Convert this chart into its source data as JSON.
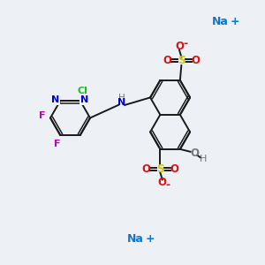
{
  "background_color": "#edf0f5",
  "figure_size": [
    3.0,
    3.0
  ],
  "dpi": 100,
  "colors": {
    "bond": "#1a1a1a",
    "N": "#0000cc",
    "F": "#bb00bb",
    "Cl": "#22bb22",
    "S": "#cccc00",
    "O": "#dd1111",
    "Na": "#1177cc",
    "H": "#777777",
    "C": "#1a1a1a"
  },
  "lw": 1.4,
  "lw_double": 1.1
}
